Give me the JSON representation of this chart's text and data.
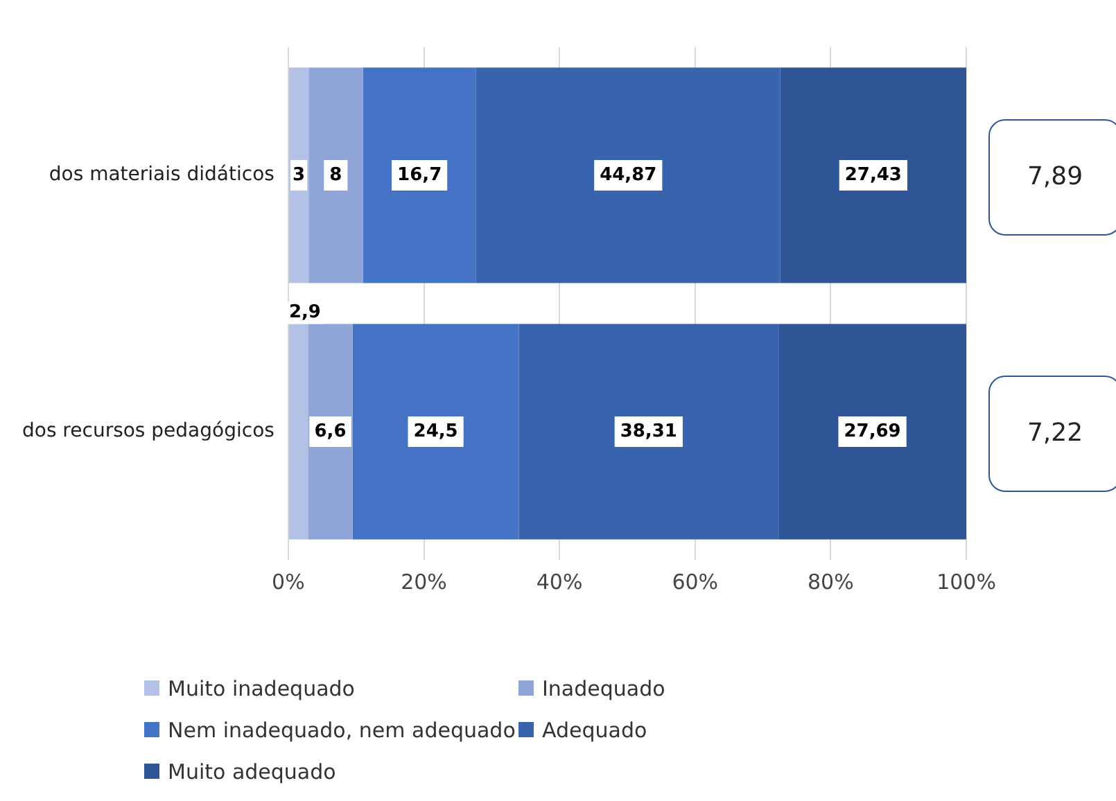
{
  "chart_data": {
    "type": "bar",
    "orientation": "horizontal",
    "stacked": true,
    "categories": [
      "dos materiais didáticos",
      "dos recursos pedagógicos"
    ],
    "series": [
      {
        "name": "Muito inadequado",
        "color": "#b4c1e6",
        "values": [
          3,
          2.9
        ],
        "value_labels": [
          "3",
          "2,9"
        ]
      },
      {
        "name": "Inadequado",
        "color": "#8fa5d8",
        "values": [
          8,
          6.6
        ],
        "value_labels": [
          "8",
          "6,6"
        ]
      },
      {
        "name": "Nem inadequado, nem adequado",
        "color": "#4472c4",
        "values": [
          16.7,
          24.5
        ],
        "value_labels": [
          "16,7",
          "24,5"
        ]
      },
      {
        "name": "Adequado",
        "color": "#3a63ad",
        "values": [
          44.87,
          38.31
        ],
        "value_labels": [
          "44,87",
          "38,31"
        ]
      },
      {
        "name": "Muito adequado",
        "color": "#2f5597",
        "values": [
          27.43,
          27.69
        ],
        "value_labels": [
          "27,43",
          "27,69"
        ]
      }
    ],
    "xlim": [
      0,
      100
    ],
    "xticks": [
      {
        "value": 0,
        "label": "0%"
      },
      {
        "value": 20,
        "label": "20%"
      },
      {
        "value": 40,
        "label": "40%"
      },
      {
        "value": 60,
        "label": "60%"
      },
      {
        "value": 80,
        "label": "80%"
      },
      {
        "value": 100,
        "label": "100%"
      }
    ],
    "grid": "x",
    "legend": "bottom",
    "annotations": [
      "7,89",
      "7,22"
    ]
  }
}
